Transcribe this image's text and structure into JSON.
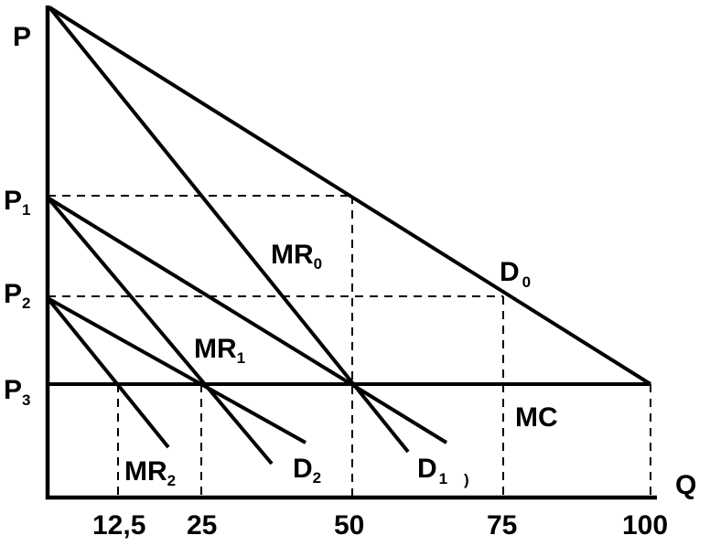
{
  "axes": {
    "y_label": "P",
    "x_label": "Q"
  },
  "price_levels": [
    {
      "main": "P",
      "sub": "1"
    },
    {
      "main": "P",
      "sub": "2"
    },
    {
      "main": "P",
      "sub": "3"
    }
  ],
  "x_ticks": [
    "12,5",
    "25",
    "50",
    "75",
    "100"
  ],
  "curves": {
    "D0": {
      "main": "D",
      "sub": "0"
    },
    "MR0": {
      "main": "MR",
      "sub": "0"
    },
    "D1": {
      "main": "D",
      "sub": "1"
    },
    "D1_mark": ")",
    "MR1": {
      "main": "MR",
      "sub": "1"
    },
    "D2": {
      "main": "D",
      "sub": "2"
    },
    "MR2": {
      "main": "MR",
      "sub": "2"
    },
    "MC": "MC"
  }
}
